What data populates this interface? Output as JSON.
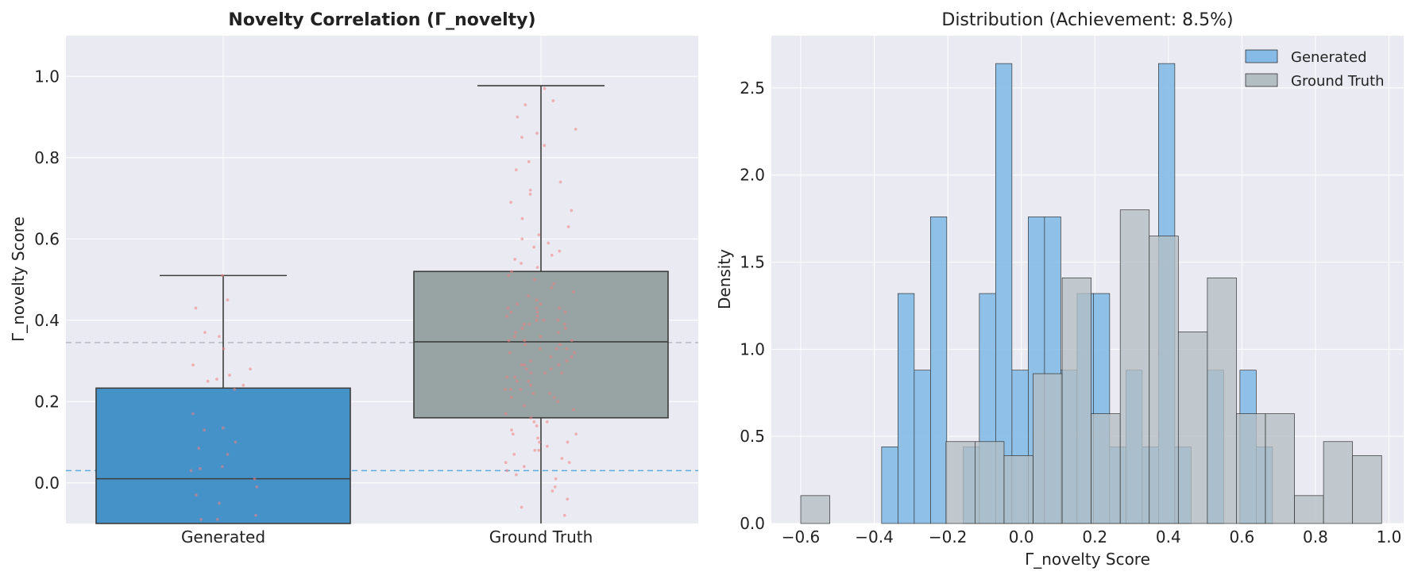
{
  "chart_data": [
    {
      "type": "box",
      "title": "Novelty Correlation (Γ_novelty)",
      "xlabel": "",
      "ylabel": "Γ_novelty Score",
      "ylim": [
        -0.1,
        1.1
      ],
      "yticks": [
        "0.0",
        "0.2",
        "0.4",
        "0.6",
        "0.8",
        "1.0"
      ],
      "grid": true,
      "categories": [
        "Generated",
        "Ground Truth"
      ],
      "boxes": [
        {
          "name": "Generated",
          "q1": -0.1,
          "median": 0.01,
          "q3": 0.233,
          "whisker_low": -0.1,
          "whisker_high": 0.51,
          "color": "#4592c8"
        },
        {
          "name": "Ground Truth",
          "q1": 0.16,
          "median": 0.347,
          "q3": 0.52,
          "whisker_low": -0.1,
          "whisker_high": 0.977,
          "color": "#98a3a4"
        }
      ],
      "reference_lines": [
        {
          "y": 0.03,
          "color": "#5dade2"
        },
        {
          "y": 0.345,
          "color": "#b8bcc8"
        }
      ],
      "jitter_color": "#f08080",
      "jitter": [
        {
          "group": 0,
          "values": [
            0.51,
            0.45,
            0.43,
            0.37,
            0.36,
            0.33,
            0.29,
            0.28,
            0.265,
            0.255,
            0.25,
            0.24,
            0.23,
            0.17,
            0.135,
            0.13,
            0.1,
            0.085,
            0.07,
            0.04,
            0.035,
            0.03,
            0.01,
            -0.01,
            -0.03,
            -0.05,
            -0.08,
            -0.09,
            -0.09
          ]
        },
        {
          "group": 1,
          "values": [
            0.97,
            0.94,
            0.93,
            0.9,
            0.87,
            0.86,
            0.85,
            0.83,
            0.79,
            0.77,
            0.74,
            0.72,
            0.71,
            0.69,
            0.67,
            0.65,
            0.63,
            0.61,
            0.6,
            0.59,
            0.58,
            0.57,
            0.56,
            0.55,
            0.54,
            0.53,
            0.52,
            0.51,
            0.5,
            0.49,
            0.48,
            0.47,
            0.46,
            0.45,
            0.44,
            0.43,
            0.42,
            0.41,
            0.4,
            0.39,
            0.38,
            0.37,
            0.36,
            0.35,
            0.34,
            0.33,
            0.32,
            0.31,
            0.3,
            0.29,
            0.28,
            0.27,
            0.26,
            0.25,
            0.24,
            0.23,
            0.22,
            0.21,
            0.2,
            0.19,
            0.18,
            0.17,
            0.16,
            0.15,
            0.14,
            0.13,
            0.12,
            0.11,
            0.1,
            0.09,
            0.08,
            0.07,
            0.06,
            0.05,
            0.04,
            0.03,
            0.02,
            0.01,
            -0.01,
            -0.02,
            -0.04,
            -0.06,
            -0.08,
            0.44,
            0.43,
            0.42,
            0.41,
            0.4,
            0.39,
            0.38,
            0.37,
            0.36,
            0.35,
            0.34,
            0.33,
            0.32,
            0.3,
            0.29,
            0.28,
            0.27,
            0.26,
            0.25,
            0.23,
            0.22,
            0.21,
            0.15,
            0.12,
            0.1,
            0.08,
            0.05,
            0.43,
            0.42,
            0.4,
            0.39,
            0.35,
            0.33,
            0.31,
            0.29,
            0.27,
            0.23
          ]
        }
      ]
    },
    {
      "type": "histogram",
      "title": "Distribution (Achievement: 8.5%)",
      "xlabel": "Γ_novelty Score",
      "ylabel": "Density",
      "xlim": [
        -0.68,
        1.04
      ],
      "ylim": [
        0,
        2.8
      ],
      "xticks": [
        "−0.6",
        "−0.4",
        "−0.2",
        "0.0",
        "0.2",
        "0.4",
        "0.6",
        "0.8",
        "1.0"
      ],
      "yticks": [
        "0.0",
        "0.5",
        "1.0",
        "1.5",
        "2.0",
        "2.5"
      ],
      "grid": true,
      "legend_position": "top-right",
      "series": [
        {
          "name": "Generated",
          "color": "#85bbe6",
          "bin_start": -0.38,
          "bin_width": 0.0443,
          "values": [
            0.44,
            1.32,
            0.88,
            1.76,
            0.0,
            0.44,
            1.32,
            2.64,
            0.88,
            1.76,
            1.76,
            0.88,
            1.32,
            1.32,
            0.44,
            0.88,
            0.44,
            2.64,
            0.44,
            0.0,
            0.88,
            0.0,
            0.88,
            0.44
          ]
        },
        {
          "name": "Ground Truth",
          "color": "#b3bec3",
          "bin_start": -0.6,
          "bin_width": 0.079,
          "values": [
            0.16,
            0.0,
            0.0,
            0.0,
            0.0,
            0.47,
            0.47,
            0.39,
            0.86,
            1.41,
            0.63,
            1.8,
            1.65,
            1.1,
            1.41,
            0.63,
            0.63,
            0.16,
            0.47,
            0.39
          ]
        }
      ]
    }
  ]
}
